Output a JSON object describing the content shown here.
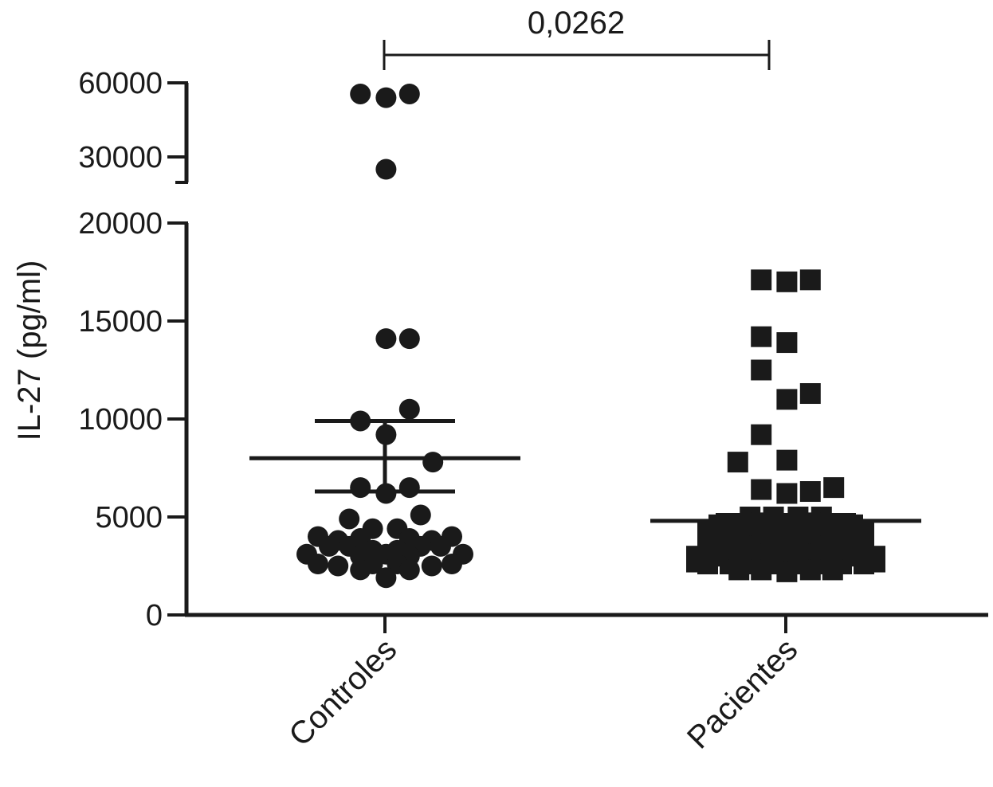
{
  "chart_data": {
    "type": "scatter",
    "title": "",
    "xlabel": "",
    "ylabel": "IL-27 (pg/ml)",
    "categories": [
      "Controles",
      "Pacientes"
    ],
    "y_axis": {
      "broken": true,
      "lower_segment": {
        "range": [
          0,
          20000
        ],
        "ticks": [
          "0",
          "5000",
          "10000",
          "15000",
          "20000"
        ]
      },
      "upper_segment": {
        "range": [
          20000,
          60000
        ],
        "ticks": [
          "30000",
          "60000"
        ]
      }
    },
    "annotation": {
      "text": "0,0262",
      "between": [
        "Controles",
        "Pacientes"
      ]
    },
    "series": [
      {
        "name": "Controles",
        "marker": "circle",
        "mean": 8000,
        "sem": [
          6300,
          9900
        ],
        "points": [
          {
            "x": -0.22,
            "y": 55500
          },
          {
            "x": 0.01,
            "y": 54000
          },
          {
            "x": 0.22,
            "y": 55500
          },
          {
            "x": 0.01,
            "y": 25000
          },
          {
            "x": 0.01,
            "y": 14100
          },
          {
            "x": 0.22,
            "y": 14100
          },
          {
            "x": 0.22,
            "y": 10500
          },
          {
            "x": -0.22,
            "y": 9900
          },
          {
            "x": 0.01,
            "y": 9200
          },
          {
            "x": 0.43,
            "y": 7800
          },
          {
            "x": -0.22,
            "y": 6500
          },
          {
            "x": 0.01,
            "y": 6200
          },
          {
            "x": 0.22,
            "y": 6500
          },
          {
            "x": 0.32,
            "y": 5100
          },
          {
            "x": -0.32,
            "y": 4900
          },
          {
            "x": -0.11,
            "y": 4400
          },
          {
            "x": 0.11,
            "y": 4400
          },
          {
            "x": -0.6,
            "y": 4000
          },
          {
            "x": -0.42,
            "y": 3800
          },
          {
            "x": -0.22,
            "y": 3900
          },
          {
            "x": 0.22,
            "y": 3900
          },
          {
            "x": 0.42,
            "y": 3800
          },
          {
            "x": 0.6,
            "y": 4000
          },
          {
            "x": -0.5,
            "y": 3500
          },
          {
            "x": -0.32,
            "y": 3500
          },
          {
            "x": -0.11,
            "y": 3300
          },
          {
            "x": 0.11,
            "y": 3300
          },
          {
            "x": 0.32,
            "y": 3500
          },
          {
            "x": 0.5,
            "y": 3500
          },
          {
            "x": -0.7,
            "y": 3100
          },
          {
            "x": -0.22,
            "y": 3000
          },
          {
            "x": 0.01,
            "y": 3100
          },
          {
            "x": 0.22,
            "y": 3000
          },
          {
            "x": 0.7,
            "y": 3100
          },
          {
            "x": -0.6,
            "y": 2600
          },
          {
            "x": -0.42,
            "y": 2500
          },
          {
            "x": -0.11,
            "y": 2600
          },
          {
            "x": 0.11,
            "y": 2600
          },
          {
            "x": 0.42,
            "y": 2500
          },
          {
            "x": 0.6,
            "y": 2600
          },
          {
            "x": -0.22,
            "y": 2300
          },
          {
            "x": 0.22,
            "y": 2300
          },
          {
            "x": 0.01,
            "y": 1900
          }
        ]
      },
      {
        "name": "Pacientes",
        "marker": "square",
        "mean": 4800,
        "sem": [
          4500,
          5100
        ],
        "points": [
          {
            "x": -0.22,
            "y": 17100
          },
          {
            "x": 0.01,
            "y": 17000
          },
          {
            "x": 0.22,
            "y": 17100
          },
          {
            "x": -0.22,
            "y": 14200
          },
          {
            "x": 0.01,
            "y": 13900
          },
          {
            "x": -0.22,
            "y": 12500
          },
          {
            "x": 0.22,
            "y": 11300
          },
          {
            "x": 0.01,
            "y": 11000
          },
          {
            "x": -0.22,
            "y": 9200
          },
          {
            "x": -0.43,
            "y": 7800
          },
          {
            "x": 0.01,
            "y": 7900
          },
          {
            "x": -0.22,
            "y": 6400
          },
          {
            "x": 0.01,
            "y": 6200
          },
          {
            "x": 0.22,
            "y": 6300
          },
          {
            "x": 0.43,
            "y": 6500
          },
          {
            "x": -0.32,
            "y": 5000
          },
          {
            "x": -0.11,
            "y": 5000
          },
          {
            "x": 0.11,
            "y": 5000
          },
          {
            "x": 0.32,
            "y": 5000
          },
          {
            "x": -0.6,
            "y": 4600
          },
          {
            "x": -0.42,
            "y": 4600
          },
          {
            "x": -0.22,
            "y": 4700
          },
          {
            "x": 0.01,
            "y": 4600
          },
          {
            "x": 0.22,
            "y": 4700
          },
          {
            "x": 0.42,
            "y": 4600
          },
          {
            "x": 0.6,
            "y": 4600
          },
          {
            "x": -0.7,
            "y": 4200
          },
          {
            "x": -0.5,
            "y": 4200
          },
          {
            "x": -0.32,
            "y": 4300
          },
          {
            "x": -0.11,
            "y": 4300
          },
          {
            "x": 0.11,
            "y": 4300
          },
          {
            "x": 0.32,
            "y": 4300
          },
          {
            "x": 0.5,
            "y": 4200
          },
          {
            "x": 0.7,
            "y": 4200
          },
          {
            "x": -0.6,
            "y": 3800
          },
          {
            "x": -0.42,
            "y": 3800
          },
          {
            "x": -0.22,
            "y": 3900
          },
          {
            "x": 0.01,
            "y": 3800
          },
          {
            "x": 0.22,
            "y": 3900
          },
          {
            "x": 0.42,
            "y": 3800
          },
          {
            "x": 0.6,
            "y": 3800
          },
          {
            "x": -0.7,
            "y": 3400
          },
          {
            "x": -0.5,
            "y": 3400
          },
          {
            "x": -0.32,
            "y": 3500
          },
          {
            "x": -0.11,
            "y": 3400
          },
          {
            "x": 0.11,
            "y": 3400
          },
          {
            "x": 0.32,
            "y": 3500
          },
          {
            "x": 0.5,
            "y": 3400
          },
          {
            "x": 0.7,
            "y": 3400
          },
          {
            "x": -0.8,
            "y": 3000
          },
          {
            "x": -0.6,
            "y": 3000
          },
          {
            "x": -0.42,
            "y": 3000
          },
          {
            "x": -0.22,
            "y": 3100
          },
          {
            "x": 0.01,
            "y": 3000
          },
          {
            "x": 0.22,
            "y": 3100
          },
          {
            "x": 0.42,
            "y": 3000
          },
          {
            "x": 0.6,
            "y": 3000
          },
          {
            "x": 0.8,
            "y": 3000
          },
          {
            "x": -0.8,
            "y": 2700
          },
          {
            "x": -0.7,
            "y": 2600
          },
          {
            "x": -0.5,
            "y": 2600
          },
          {
            "x": -0.32,
            "y": 2600
          },
          {
            "x": -0.11,
            "y": 2600
          },
          {
            "x": 0.11,
            "y": 2600
          },
          {
            "x": 0.32,
            "y": 2600
          },
          {
            "x": 0.5,
            "y": 2600
          },
          {
            "x": 0.7,
            "y": 2600
          },
          {
            "x": 0.8,
            "y": 2700
          },
          {
            "x": -0.42,
            "y": 2300
          },
          {
            "x": -0.22,
            "y": 2300
          },
          {
            "x": 0.01,
            "y": 2200
          },
          {
            "x": 0.22,
            "y": 2300
          },
          {
            "x": 0.42,
            "y": 2300
          }
        ]
      }
    ]
  }
}
